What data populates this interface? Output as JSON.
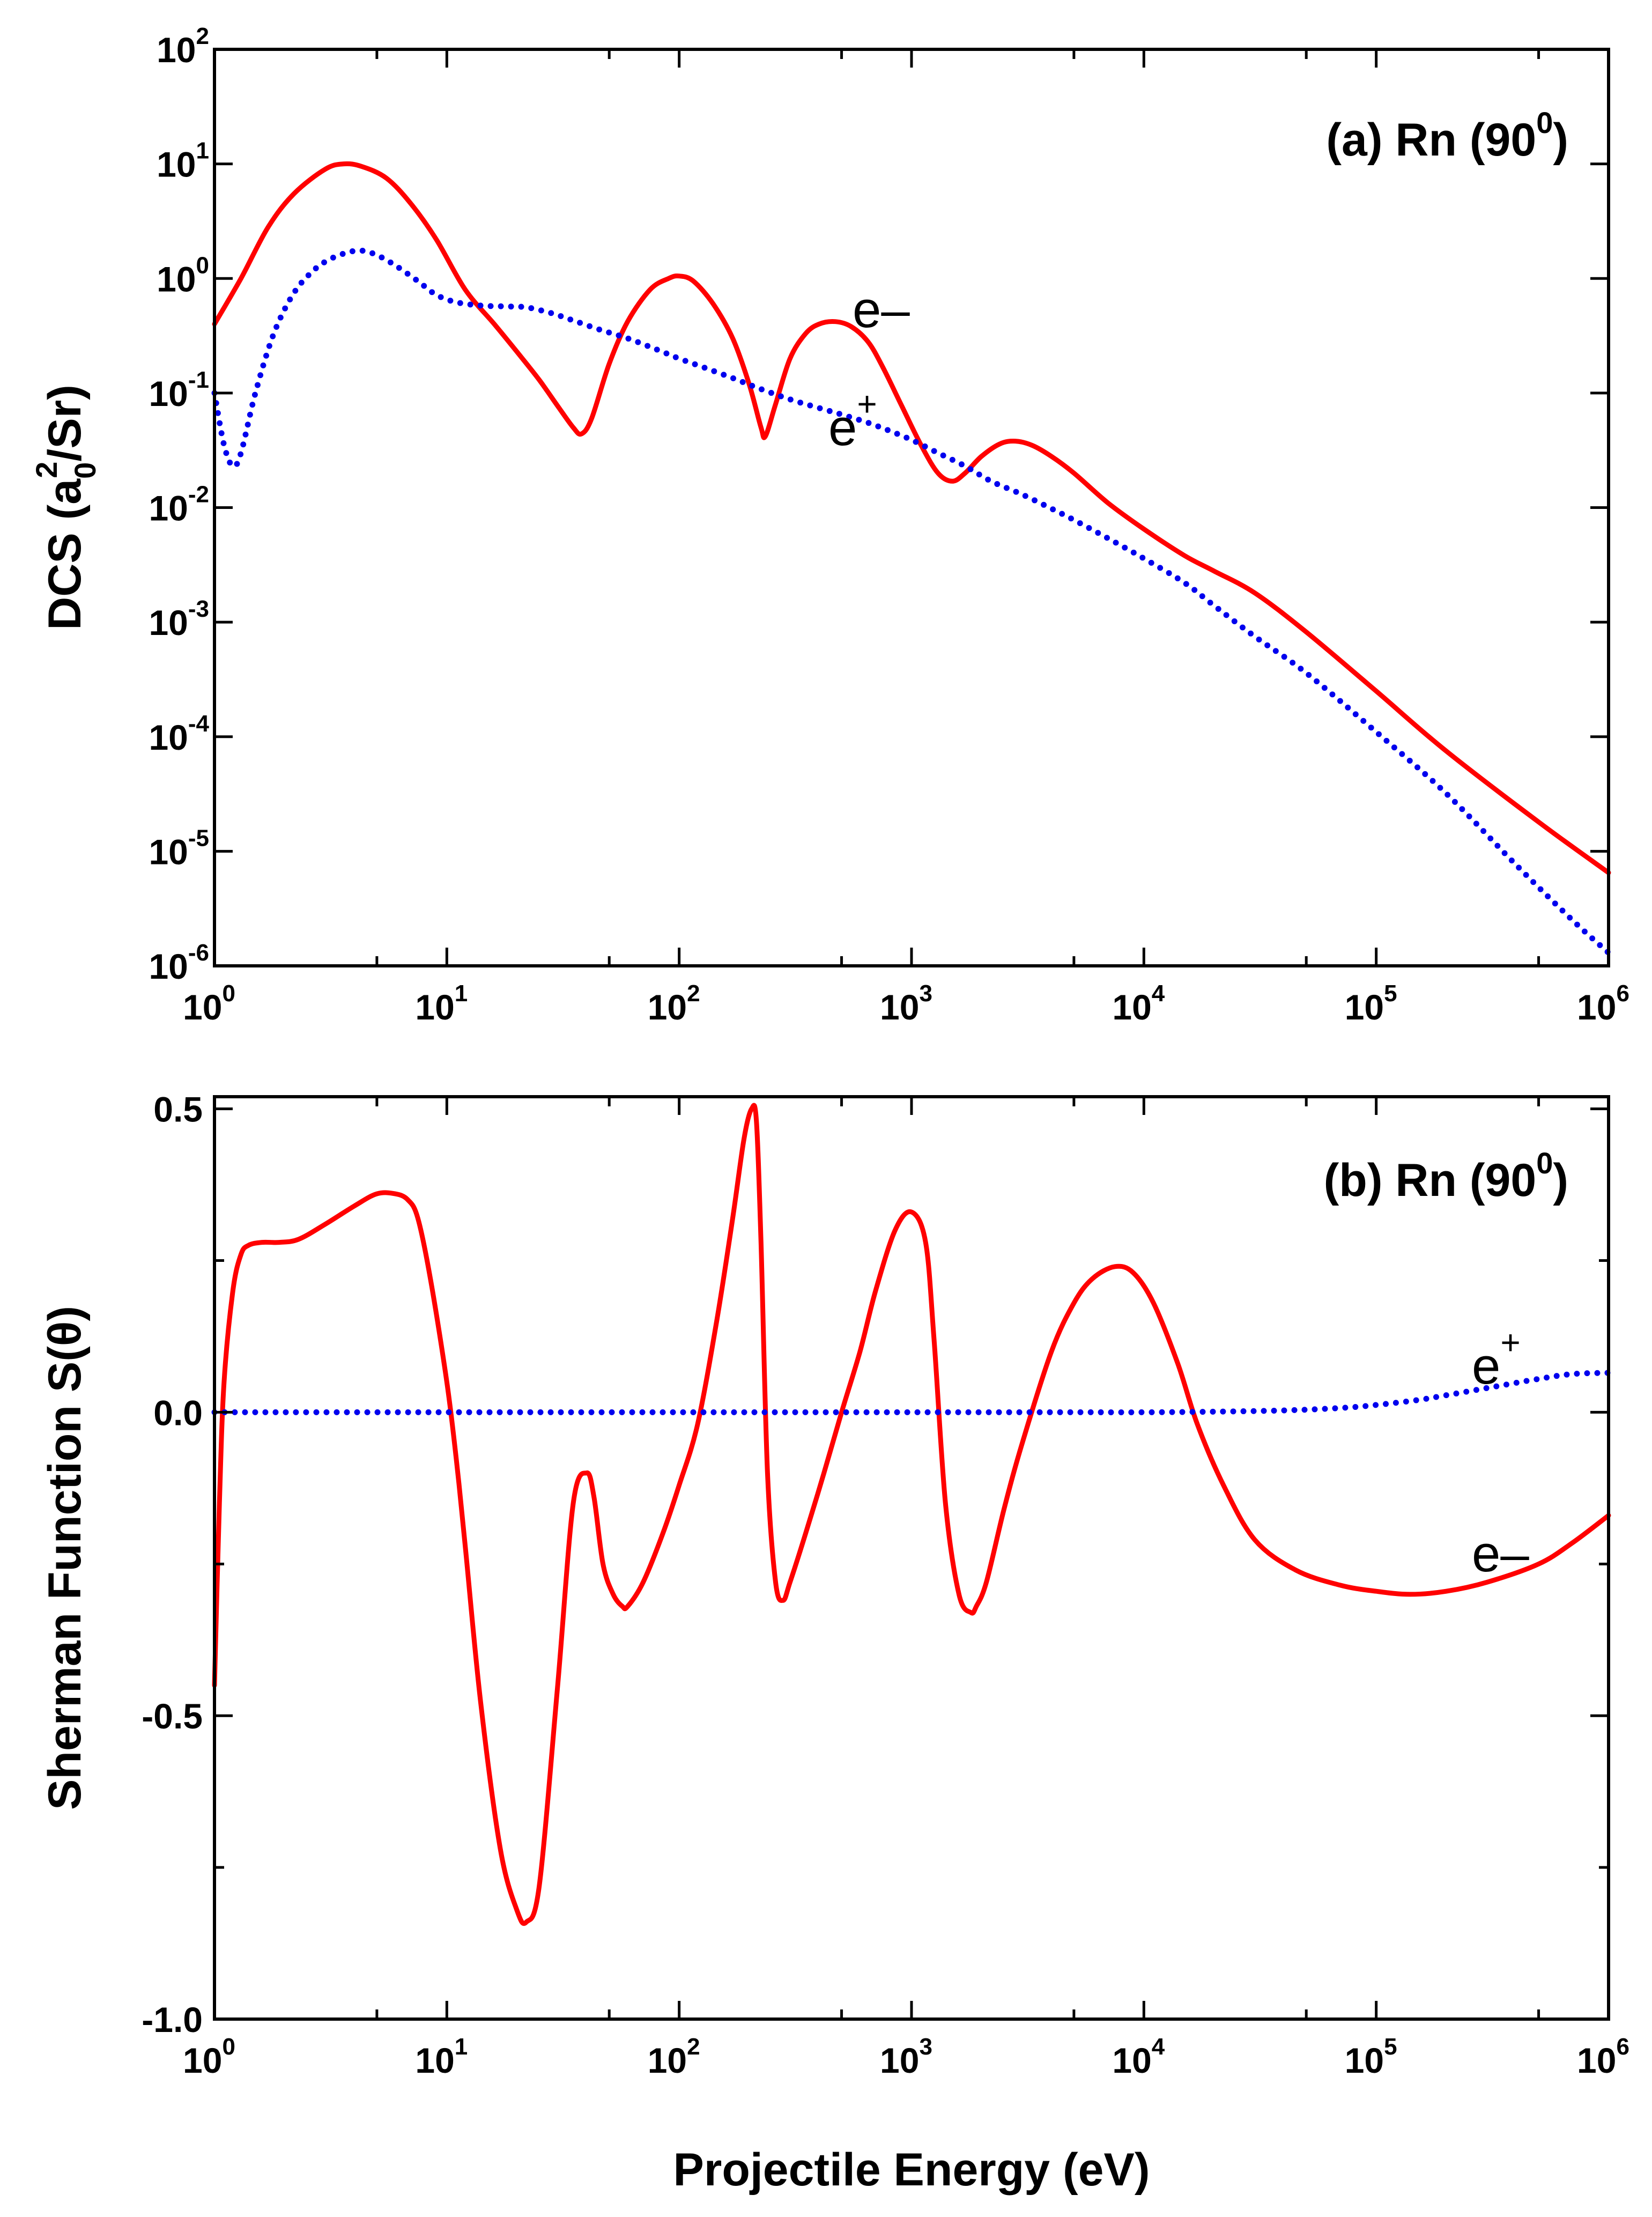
{
  "xlabel": "Projectile Energy (eV)",
  "colors": {
    "electron": "#ff0000",
    "positron": "#0000ee",
    "axis": "#000000"
  },
  "chart_data": [
    {
      "type": "line",
      "panel": "a",
      "title": "(a) Rn (90",
      "title_sup": "0",
      "title_close": ")",
      "ylabel_parts": [
        "DCS (a",
        "0",
        "2",
        "/Sr)"
      ],
      "xscale": "log",
      "yscale": "log",
      "xlim": [
        1,
        1000000
      ],
      "ylim": [
        1e-06,
        100
      ],
      "xticks": [
        {
          "base": "10",
          "exp": "0",
          "v": 1
        },
        {
          "base": "10",
          "exp": "1",
          "v": 10
        },
        {
          "base": "10",
          "exp": "2",
          "v": 100
        },
        {
          "base": "10",
          "exp": "3",
          "v": 1000
        },
        {
          "base": "10",
          "exp": "4",
          "v": 10000
        },
        {
          "base": "10",
          "exp": "5",
          "v": 100000
        },
        {
          "base": "10",
          "exp": "6",
          "v": 1000000
        }
      ],
      "yticks": [
        {
          "base": "10",
          "exp": "2",
          "v": 100
        },
        {
          "base": "10",
          "exp": "1",
          "v": 10
        },
        {
          "base": "10",
          "exp": "0",
          "v": 1
        },
        {
          "base": "10",
          "exp": "-1",
          "v": 0.1
        },
        {
          "base": "10",
          "exp": "-2",
          "v": 0.01
        },
        {
          "base": "10",
          "exp": "-3",
          "v": 0.001
        },
        {
          "base": "10",
          "exp": "-4",
          "v": 0.0001
        },
        {
          "base": "10",
          "exp": "-5",
          "v": 1e-05
        },
        {
          "base": "10",
          "exp": "-6",
          "v": 1e-06
        }
      ],
      "series": [
        {
          "name": "e-",
          "label": "e–",
          "label_sup": "",
          "style": "solid",
          "color": "#ff0000",
          "x": [
            1.0,
            1.3,
            1.7,
            2.2,
            3.0,
            3.6,
            4.3,
            5.5,
            7.0,
            9.0,
            12,
            16,
            20,
            25,
            30,
            35,
            38,
            42,
            50,
            60,
            75,
            90,
            100,
            115,
            140,
            170,
            200,
            225,
            235,
            260,
            300,
            350,
            400,
            470,
            550,
            650,
            750,
            900,
            1100,
            1300,
            1500,
            1700,
            2000,
            2400,
            2800,
            3300,
            4000,
            5000,
            7000,
            10000,
            15000,
            20000,
            30000,
            50000,
            100000,
            200000,
            500000,
            1000000
          ],
          "y": [
            0.4,
            1.0,
            2.8,
            5.5,
            9.0,
            10.0,
            9.5,
            7.5,
            4.5,
            2.2,
            0.8,
            0.4,
            0.23,
            0.13,
            0.077,
            0.05,
            0.044,
            0.06,
            0.18,
            0.42,
            0.8,
            1.0,
            1.05,
            0.95,
            0.6,
            0.3,
            0.12,
            0.05,
            0.042,
            0.08,
            0.2,
            0.33,
            0.4,
            0.42,
            0.38,
            0.28,
            0.17,
            0.08,
            0.035,
            0.02,
            0.017,
            0.02,
            0.028,
            0.036,
            0.038,
            0.035,
            0.028,
            0.02,
            0.011,
            0.0065,
            0.0038,
            0.0028,
            0.0018,
            0.00082,
            0.00025,
            7.5e-05,
            1.8e-05,
            6.5e-06
          ]
        },
        {
          "name": "e+",
          "label": "e",
          "label_sup": "+",
          "style": "dotted",
          "color": "#0000ee",
          "x": [
            1.0,
            1.1,
            1.2,
            1.3,
            1.5,
            1.8,
            2.2,
            2.7,
            3.2,
            3.8,
            4.3,
            5.0,
            6.0,
            7.5,
            9.0,
            11,
            14,
            18,
            22,
            28,
            35,
            45,
            60,
            80,
            100,
            130,
            170,
            220,
            300,
            400,
            500,
            650,
            800,
            1000,
            1300,
            1700,
            2200,
            3000,
            4000,
            5000,
            7000,
            10000,
            15000,
            20000,
            30000,
            50000,
            100000,
            200000,
            400000,
            700000,
            1000000
          ],
          "y": [
            0.1,
            0.035,
            0.023,
            0.03,
            0.1,
            0.33,
            0.75,
            1.2,
            1.5,
            1.7,
            1.75,
            1.6,
            1.3,
            0.95,
            0.72,
            0.62,
            0.58,
            0.57,
            0.56,
            0.5,
            0.43,
            0.36,
            0.3,
            0.24,
            0.2,
            0.165,
            0.135,
            0.11,
            0.088,
            0.074,
            0.065,
            0.055,
            0.047,
            0.039,
            0.03,
            0.023,
            0.017,
            0.013,
            0.0098,
            0.0078,
            0.0054,
            0.0036,
            0.0022,
            0.0014,
            0.00075,
            0.00036,
            0.00011,
            3.2e-05,
            7.6e-06,
            2.5e-06,
            1.3e-06
          ]
        }
      ]
    },
    {
      "type": "line",
      "panel": "b",
      "title": "(b) Rn (90",
      "title_sup": "0",
      "title_close": ")",
      "ylabel": "Sherman Function S(θ)",
      "xscale": "log",
      "yscale": "linear",
      "xlim": [
        1,
        1000000
      ],
      "ylim": [
        -1.0,
        0.52
      ],
      "xticks": [
        {
          "base": "10",
          "exp": "0",
          "v": 1
        },
        {
          "base": "10",
          "exp": "1",
          "v": 10
        },
        {
          "base": "10",
          "exp": "2",
          "v": 100
        },
        {
          "base": "10",
          "exp": "3",
          "v": 1000
        },
        {
          "base": "10",
          "exp": "4",
          "v": 10000
        },
        {
          "base": "10",
          "exp": "5",
          "v": 100000
        },
        {
          "base": "10",
          "exp": "6",
          "v": 1000000
        }
      ],
      "yticks": [
        {
          "label": "0.5",
          "v": 0.5
        },
        {
          "label": "0.0",
          "v": 0.0
        },
        {
          "label": "-0.5",
          "v": -0.5
        },
        {
          "label": "-1.0",
          "v": -1.0
        }
      ],
      "yminor": [
        0.25,
        -0.25,
        -0.75
      ],
      "series": [
        {
          "name": "e-",
          "label": "e–",
          "label_sup": "",
          "style": "solid",
          "color": "#ff0000",
          "x": [
            1.0,
            1.05,
            1.1,
            1.2,
            1.3,
            1.4,
            1.6,
            1.9,
            2.3,
            3.0,
            4.0,
            5.0,
            6.0,
            6.8,
            7.5,
            8.5,
            10,
            11,
            12,
            14,
            17,
            20,
            22,
            25,
            30,
            35,
            40,
            43,
            47,
            52,
            57,
            60,
            70,
            85,
            100,
            120,
            145,
            170,
            190,
            205,
            215,
            225,
            240,
            260,
            280,
            300,
            350,
            420,
            500,
            600,
            700,
            850,
            1000,
            1150,
            1250,
            1400,
            1600,
            1800,
            1900,
            2100,
            2500,
            3000,
            4000,
            5000,
            6000,
            7500,
            9000,
            11000,
            14000,
            17000,
            22000,
            30000,
            45000,
            70000,
            100000,
            140000,
            200000,
            300000,
            500000,
            700000,
            1000000
          ],
          "y": [
            -0.45,
            -0.15,
            0.05,
            0.2,
            0.26,
            0.275,
            0.28,
            0.28,
            0.285,
            0.31,
            0.34,
            0.36,
            0.36,
            0.35,
            0.32,
            0.22,
            0.05,
            -0.08,
            -0.22,
            -0.48,
            -0.72,
            -0.82,
            -0.84,
            -0.78,
            -0.45,
            -0.15,
            -0.1,
            -0.14,
            -0.25,
            -0.3,
            -0.32,
            -0.32,
            -0.28,
            -0.2,
            -0.12,
            -0.02,
            0.15,
            0.32,
            0.45,
            0.5,
            0.48,
            0.28,
            -0.1,
            -0.28,
            -0.31,
            -0.28,
            -0.2,
            -0.1,
            0.0,
            0.1,
            0.2,
            0.3,
            0.33,
            0.28,
            0.12,
            -0.15,
            -0.3,
            -0.33,
            -0.32,
            -0.28,
            -0.16,
            -0.05,
            0.1,
            0.18,
            0.22,
            0.24,
            0.23,
            0.18,
            0.08,
            -0.02,
            -0.12,
            -0.21,
            -0.26,
            -0.285,
            -0.295,
            -0.3,
            -0.295,
            -0.28,
            -0.25,
            -0.215,
            -0.17
          ]
        },
        {
          "name": "e+",
          "label": "e",
          "label_sup": "+",
          "style": "dotted",
          "color": "#0000ee",
          "x": [
            1,
            10,
            100,
            1000,
            5000,
            10000,
            20000,
            40000,
            70000,
            100000,
            150000,
            200000,
            300000,
            500000,
            700000,
            1000000
          ],
          "y": [
            0.0,
            0.0,
            0.0,
            0.0,
            0.0,
            0.0,
            0.001,
            0.003,
            0.007,
            0.012,
            0.02,
            0.028,
            0.04,
            0.055,
            0.063,
            0.065
          ]
        }
      ]
    }
  ]
}
